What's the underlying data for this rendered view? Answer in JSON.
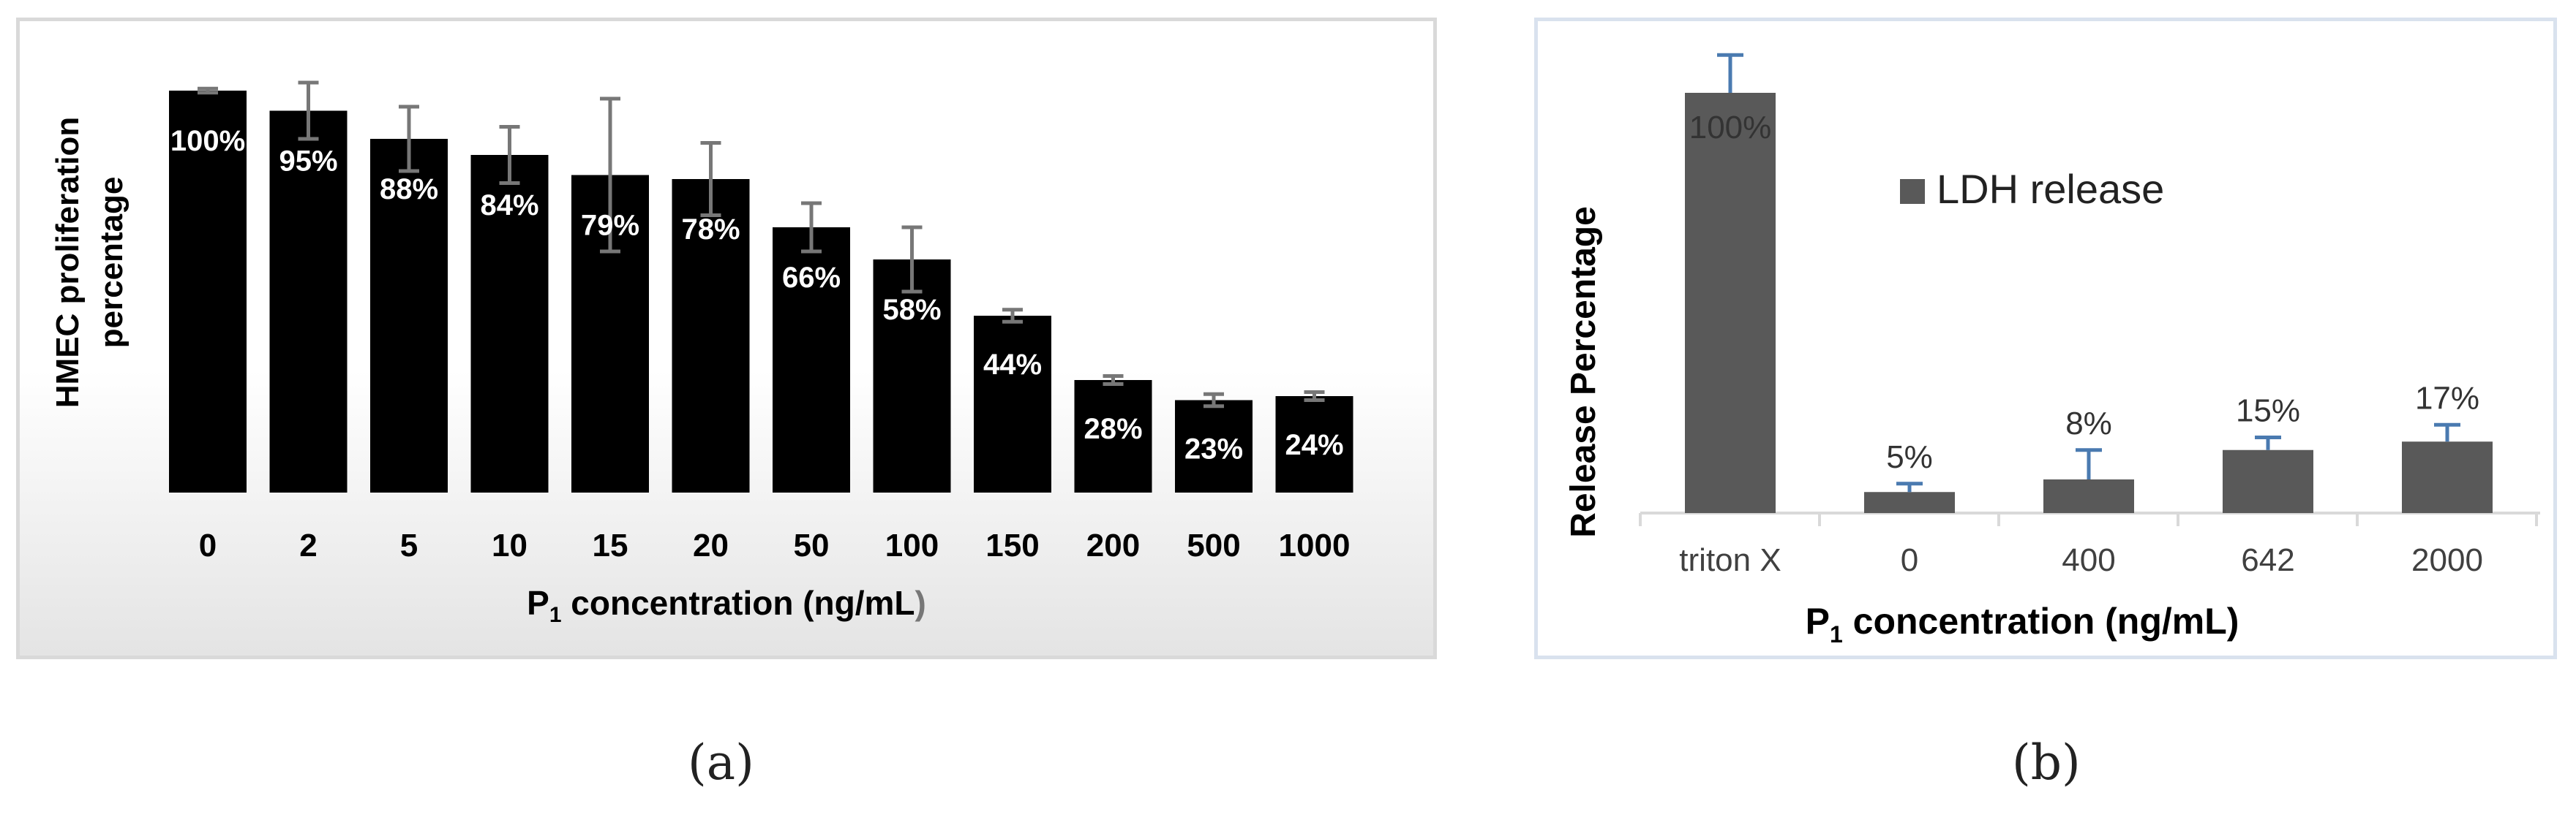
{
  "chart_data": [
    {
      "type": "bar",
      "xlabel_main": "P",
      "xlabel_sub": "1",
      "xlabel_rest": " concentration (ng/mL",
      "xlabel_end": ")",
      "ylabel_line1": "HMEC proliferation",
      "ylabel_line2": "percentage",
      "categories": [
        "0",
        "2",
        "5",
        "10",
        "15",
        "20",
        "50",
        "100",
        "150",
        "200",
        "500",
        "1000"
      ],
      "values": [
        100,
        95,
        88,
        84,
        79,
        78,
        66,
        58,
        44,
        28,
        23,
        24
      ],
      "errors": [
        0.5,
        7,
        8,
        7,
        19,
        9,
        6,
        8,
        1.5,
        1,
        1.5,
        1
      ],
      "data_labels": [
        "100%",
        "95%",
        "88%",
        "84%",
        "79%",
        "78%",
        "66%",
        "58%",
        "44%",
        "28%",
        "23%",
        "24%"
      ],
      "ylim": [
        0,
        100
      ],
      "bar_color": "#000000",
      "errorbar_color": "#777777",
      "label_color": "#ffffff"
    },
    {
      "type": "bar",
      "xlabel_main": "P",
      "xlabel_sub": "1",
      "xlabel_rest": " concentration (ng/mL)",
      "ylabel": "Release Percentage",
      "legend": "LDH release",
      "categories": [
        "triton X",
        "0",
        "400",
        "642",
        "2000"
      ],
      "values": [
        100,
        5,
        8,
        15,
        17
      ],
      "errors": [
        9,
        2,
        7,
        3,
        4
      ],
      "data_labels": [
        "100%",
        "5%",
        "8%",
        "15%",
        "17%"
      ],
      "ylim": [
        0,
        100
      ],
      "bar_color": "#595959",
      "errorbar_color": "#4a7ab0",
      "label_color": "#333333"
    }
  ],
  "captions": {
    "a": "(a)",
    "b": "(b)"
  }
}
